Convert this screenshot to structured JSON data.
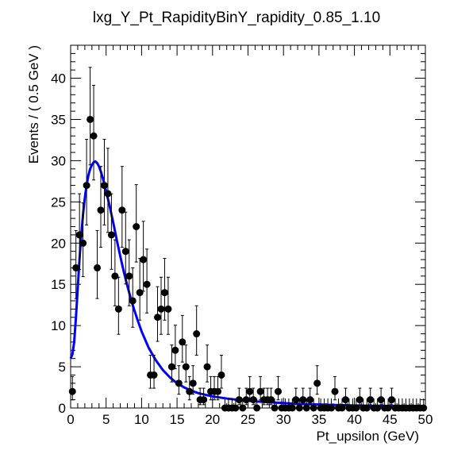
{
  "chart_data": {
    "type": "scatter",
    "title": "lxg_Y_Pt_RapidityBinY_rapidity_0.85_1.10",
    "xlabel": "Pt_upsilon (GeV)",
    "ylabel": "Events / ( 0.5 GeV )",
    "xlim": [
      0,
      50
    ],
    "ylim": [
      0,
      44
    ],
    "xticks": [
      0,
      5,
      10,
      15,
      20,
      25,
      30,
      35,
      40,
      45,
      50
    ],
    "yticks": [
      0,
      5,
      10,
      15,
      20,
      25,
      30,
      35,
      40
    ],
    "bin_width": 0.5,
    "grid": false,
    "legend": "none",
    "colors": {
      "fit": "#0000ff",
      "points": "#000000"
    },
    "series": [
      {
        "type": "points-with-errors",
        "x": [
          0.25,
          0.75,
          1.25,
          1.75,
          2.25,
          2.75,
          3.25,
          3.75,
          4.25,
          4.75,
          5.25,
          5.75,
          6.25,
          6.75,
          7.25,
          7.75,
          8.25,
          8.75,
          9.25,
          9.75,
          10.25,
          10.75,
          11.25,
          11.75,
          12.25,
          12.75,
          13.25,
          13.75,
          14.25,
          14.75,
          15.25,
          15.75,
          16.25,
          16.75,
          17.25,
          17.75,
          18.25,
          18.75,
          19.25,
          19.75,
          20.25,
          20.75,
          21.25,
          21.75,
          22.25,
          22.75,
          23.25,
          23.75,
          24.25,
          24.75,
          25.25,
          25.75,
          26.25,
          26.75,
          27.25,
          27.75,
          28.25,
          28.75,
          29.25,
          29.75,
          30.25,
          30.75,
          31.25,
          31.75,
          32.25,
          32.75,
          33.25,
          33.75,
          34.25,
          34.75,
          35.25,
          35.75,
          36.25,
          36.75,
          37.25,
          37.75,
          38.25,
          38.75,
          39.25,
          39.75,
          40.25,
          40.75,
          41.25,
          41.75,
          42.25,
          42.75,
          43.25,
          43.75,
          44.25,
          44.75,
          45.25,
          45.75,
          46.25,
          46.75,
          47.25,
          47.75,
          48.25,
          48.75,
          49.25,
          49.75
        ],
        "y": [
          2,
          17,
          21,
          20,
          27,
          35,
          33,
          17,
          24,
          27,
          26,
          21,
          16,
          12,
          24,
          19,
          16,
          13,
          22,
          14,
          18,
          15,
          4,
          4,
          11,
          12,
          14,
          12,
          5,
          7,
          3,
          8,
          5,
          2,
          3,
          9,
          1,
          1,
          5,
          2,
          2,
          2,
          4,
          0,
          0,
          0,
          0,
          1,
          0,
          1,
          2,
          1,
          0,
          2,
          1,
          1,
          1,
          0,
          2,
          0,
          0,
          0,
          0,
          1,
          0,
          1,
          0,
          1,
          0,
          3,
          0,
          0,
          0,
          0,
          2,
          0,
          0,
          1,
          0,
          0,
          0,
          1,
          0,
          0,
          1,
          0,
          0,
          1,
          0,
          0,
          1,
          0,
          0,
          0,
          0,
          0,
          0,
          0,
          0,
          0
        ]
      },
      {
        "type": "fit-curve",
        "x": [
          0,
          0.25,
          0.5,
          0.75,
          1,
          1.25,
          1.5,
          1.75,
          2,
          2.25,
          2.5,
          2.75,
          3,
          3.25,
          3.5,
          3.75,
          4,
          4.25,
          4.5,
          4.75,
          5,
          5.5,
          6,
          6.5,
          7,
          7.5,
          8,
          8.5,
          9,
          9.5,
          10,
          11,
          12,
          13,
          14,
          15,
          16,
          17,
          18,
          19,
          20,
          22,
          24,
          26,
          28,
          30,
          32,
          34,
          36,
          38,
          40,
          42,
          44,
          46,
          48,
          50
        ],
        "y": [
          6,
          6.5,
          8,
          11,
          14.5,
          18,
          21,
          23.5,
          25.5,
          27,
          28.2,
          29,
          29.5,
          29.8,
          29.9,
          29.7,
          29.3,
          28.7,
          28,
          27.2,
          26.3,
          24.5,
          22.5,
          20.4,
          18.4,
          16.5,
          14.8,
          13.2,
          11.8,
          10.5,
          9.3,
          7.3,
          5.8,
          4.6,
          3.7,
          3,
          2.5,
          2.1,
          1.8,
          1.6,
          1.4,
          1.15,
          0.95,
          0.8,
          0.7,
          0.6,
          0.5,
          0.45,
          0.4,
          0.35,
          0.3,
          0.27,
          0.24,
          0.21,
          0.19,
          0.17
        ]
      }
    ]
  }
}
